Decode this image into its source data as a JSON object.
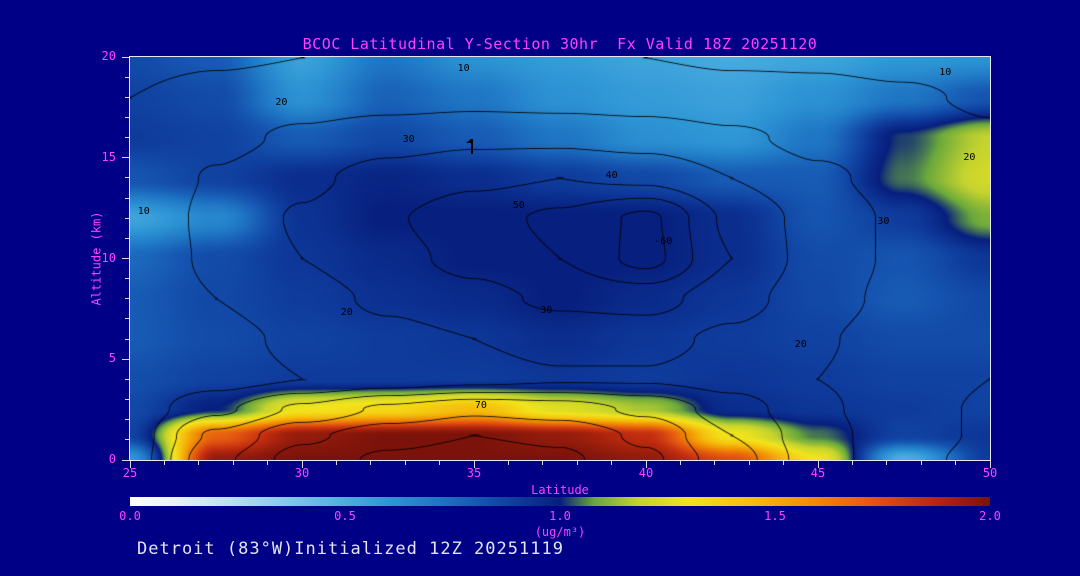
{
  "header": {
    "title": "BCOC Latitudinal Y-Section 30hr  Fx Valid 18Z 20251120"
  },
  "footer": {
    "text": "Detroit (83°W)Initialized 12Z 20251119"
  },
  "colors": {
    "background": "#000087",
    "accent_text": "#ff42ff",
    "frame": "#e8e8f6",
    "tick": "#d8d8f0",
    "footer_text": "#e4e4f4",
    "contour_line": "#000000"
  },
  "chart_data": {
    "type": "heatmap",
    "title": "BCOC Latitudinal Y-Section 30hr  Fx Valid 18Z 20251120",
    "xlabel": "Latitude",
    "ylabel": "Altitude (km)",
    "xlim": [
      25,
      50
    ],
    "ylim": [
      0,
      20
    ],
    "xticks": [
      25,
      30,
      35,
      40,
      45,
      50
    ],
    "yticks": [
      0,
      5,
      10,
      15,
      20
    ],
    "minor_tick_step_x": 1,
    "minor_tick_step_y": 1,
    "legend": "none",
    "grid": false,
    "colorbar": {
      "min": 0.0,
      "max": 2.0,
      "tick_labels": [
        "0.0",
        "0.5",
        "1.0",
        "1.5",
        "2.0"
      ],
      "unit": "(ug/m³)",
      "stops": [
        [
          0.0,
          "#ffffff"
        ],
        [
          0.1,
          "#e8f4fb"
        ],
        [
          0.22,
          "#bfe3f5"
        ],
        [
          0.35,
          "#8ccbec"
        ],
        [
          0.48,
          "#55b2e2"
        ],
        [
          0.6,
          "#2f97d6"
        ],
        [
          0.72,
          "#1f76c4"
        ],
        [
          0.82,
          "#1554b0"
        ],
        [
          0.92,
          "#0d3697"
        ],
        [
          1.0,
          "#071f7e"
        ],
        [
          1.08,
          "#6aa83c"
        ],
        [
          1.18,
          "#c3d32f"
        ],
        [
          1.3,
          "#f2e41c"
        ],
        [
          1.45,
          "#f5bd0c"
        ],
        [
          1.6,
          "#ef8903"
        ],
        [
          1.72,
          "#e55a10"
        ],
        [
          1.85,
          "#c22d0f"
        ],
        [
          2.0,
          "#7c130a"
        ]
      ]
    },
    "fill_field": {
      "name": "BCOC concentration",
      "units": "ug/m3",
      "lats": [
        25,
        27.5,
        30,
        32.5,
        35,
        37.5,
        40,
        42.5,
        45,
        47.5,
        50
      ],
      "alts_km": [
        20,
        18,
        16,
        14,
        12,
        10,
        8,
        6,
        4,
        2.5,
        1.2,
        0
      ],
      "values": [
        [
          0.85,
          0.8,
          0.56,
          0.72,
          0.62,
          0.58,
          0.55,
          0.52,
          0.55,
          0.6,
          0.62
        ],
        [
          0.88,
          0.85,
          0.62,
          0.78,
          0.72,
          0.62,
          0.58,
          0.56,
          0.62,
          0.72,
          0.82
        ],
        [
          0.9,
          0.88,
          0.8,
          0.86,
          0.8,
          0.72,
          0.63,
          0.6,
          0.72,
          1.02,
          1.18
        ],
        [
          0.82,
          0.88,
          0.95,
          0.98,
          0.95,
          0.9,
          0.86,
          0.8,
          0.8,
          1.05,
          1.22
        ],
        [
          0.55,
          0.66,
          0.93,
          1.0,
          1.0,
          1.0,
          1.0,
          0.95,
          0.82,
          0.9,
          1.1
        ],
        [
          0.76,
          0.85,
          0.92,
          0.96,
          1.0,
          1.0,
          1.0,
          0.95,
          0.85,
          0.82,
          0.92
        ],
        [
          0.8,
          0.86,
          0.9,
          0.94,
          0.96,
          1.0,
          0.96,
          0.92,
          0.86,
          0.8,
          0.86
        ],
        [
          0.8,
          0.85,
          0.88,
          0.9,
          0.92,
          0.95,
          0.92,
          0.9,
          0.88,
          0.85,
          0.85
        ],
        [
          0.84,
          0.88,
          0.9,
          0.9,
          0.9,
          0.92,
          0.9,
          0.92,
          0.9,
          0.88,
          0.88
        ],
        [
          0.86,
          1.0,
          1.3,
          1.35,
          1.45,
          1.25,
          1.15,
          0.95,
          0.92,
          0.9,
          0.88
        ],
        [
          0.88,
          1.7,
          1.95,
          2.0,
          2.0,
          1.95,
          1.85,
          1.3,
          1.05,
          0.88,
          0.92
        ],
        [
          0.6,
          1.95,
          2.0,
          2.0,
          2.0,
          2.0,
          1.95,
          1.75,
          1.3,
          0.5,
          0.9
        ]
      ]
    },
    "contour_overlay": {
      "levels": [
        10,
        20,
        30,
        40,
        50,
        60,
        70
      ],
      "lats": [
        25,
        27.5,
        30,
        32.5,
        35,
        37.5,
        40,
        42.5,
        45,
        47.5,
        50
      ],
      "alts_km": [
        20,
        18,
        16,
        14,
        12,
        10,
        8,
        6,
        4,
        2.5,
        1.2,
        0
      ],
      "values": [
        [
          8,
          9,
          10,
          11,
          11,
          11,
          10,
          9,
          9,
          8,
          7
        ],
        [
          10,
          13,
          15,
          16,
          17,
          16,
          15,
          13,
          12,
          11,
          9
        ],
        [
          11,
          17,
          22,
          26,
          28,
          28,
          26,
          22,
          17,
          14,
          11
        ],
        [
          12,
          21,
          28,
          34,
          38,
          40,
          38,
          30,
          22,
          16,
          12
        ],
        [
          11,
          23,
          31,
          39,
          46,
          52,
          62,
          38,
          26,
          18,
          13
        ],
        [
          12,
          22,
          30,
          37,
          43,
          50,
          63,
          40,
          26,
          18,
          13
        ],
        [
          12,
          20,
          26,
          32,
          37,
          42,
          44,
          34,
          24,
          17,
          12
        ],
        [
          12,
          17,
          22,
          27,
          30,
          33,
          33,
          28,
          21,
          15,
          11
        ],
        [
          13,
          16,
          20,
          24,
          27,
          29,
          29,
          26,
          20,
          14,
          10
        ],
        [
          14,
          28,
          42,
          52,
          58,
          55,
          48,
          35,
          22,
          13,
          9
        ],
        [
          15,
          42,
          58,
          66,
          70,
          68,
          58,
          40,
          24,
          13,
          9
        ],
        [
          15,
          48,
          64,
          72,
          75,
          72,
          62,
          44,
          25,
          12,
          8
        ]
      ],
      "labels": [
        {
          "text": "10",
          "lat": 34.7,
          "alt": 19.4
        },
        {
          "text": "10",
          "lat": 48.7,
          "alt": 19.2
        },
        {
          "text": "20",
          "lat": 29.4,
          "alt": 17.7
        },
        {
          "text": "30",
          "lat": 33.1,
          "alt": 15.9
        },
        {
          "text": "20",
          "lat": 49.4,
          "alt": 15.0
        },
        {
          "text": "40",
          "lat": 39.0,
          "alt": 14.1
        },
        {
          "text": "50",
          "lat": 36.3,
          "alt": 12.6
        },
        {
          "text": "30",
          "lat": 46.9,
          "alt": 11.8
        },
        {
          "text": "-60",
          "lat": 40.5,
          "alt": 10.8
        },
        {
          "text": "10",
          "lat": 25.4,
          "alt": 12.3
        },
        {
          "text": "20",
          "lat": 31.3,
          "alt": 7.3
        },
        {
          "text": "30",
          "lat": 37.1,
          "alt": 7.4
        },
        {
          "text": "20",
          "lat": 44.5,
          "alt": 5.7
        },
        {
          "text": "70",
          "lat": 35.2,
          "alt": 2.7
        }
      ]
    },
    "marker": {
      "lat": 34.9,
      "alt": 15.2
    }
  }
}
